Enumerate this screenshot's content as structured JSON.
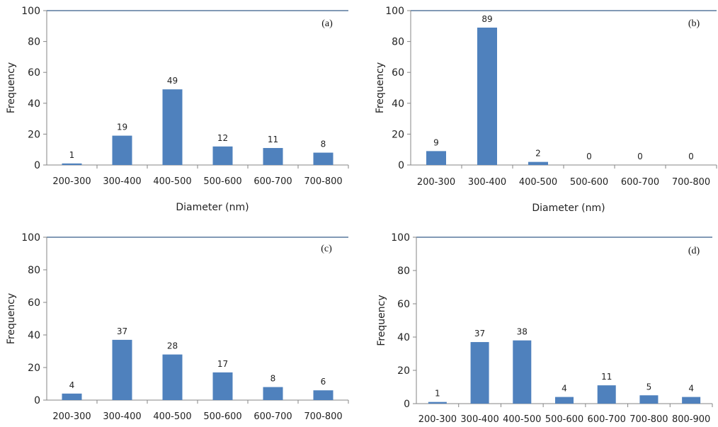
{
  "colors": {
    "bar": "#4f81bd",
    "axis": "#868686",
    "frame": "#385d8a"
  },
  "chart_data": [
    {
      "type": "bar",
      "panel_label": "(a)",
      "categories": [
        "200-300",
        "300-400",
        "400-500",
        "500-600",
        "600-700",
        "700-800"
      ],
      "values": [
        1,
        19,
        49,
        12,
        11,
        8
      ],
      "value_labels": [
        "1",
        "19",
        "49",
        "12",
        "11",
        "8"
      ],
      "xlabel": "Diameter (nm)",
      "ylabel": "Frequency",
      "ylim": [
        0,
        100
      ],
      "yticks": [
        "0",
        "20",
        "40",
        "60",
        "80",
        "100"
      ]
    },
    {
      "type": "bar",
      "panel_label": "(b)",
      "categories": [
        "200-300",
        "300-400",
        "400-500",
        "500-600",
        "600-700",
        "700-800"
      ],
      "values": [
        9,
        89,
        2,
        0,
        0,
        0
      ],
      "value_labels": [
        "9",
        "89",
        "2",
        "0",
        "0",
        "0"
      ],
      "xlabel": "Diameter (nm)",
      "ylabel": "Frequency",
      "ylim": [
        0,
        100
      ],
      "yticks": [
        "0",
        "20",
        "40",
        "60",
        "80",
        "100"
      ]
    },
    {
      "type": "bar",
      "panel_label": "(c)",
      "categories": [
        "200-300",
        "300-400",
        "400-500",
        "500-600",
        "600-700",
        "700-800"
      ],
      "values": [
        4,
        37,
        28,
        17,
        8,
        6
      ],
      "value_labels": [
        "4",
        "37",
        "28",
        "17",
        "8",
        "6"
      ],
      "xlabel": "",
      "ylabel": "Frequency",
      "ylim": [
        0,
        100
      ],
      "yticks": [
        "0",
        "20",
        "40",
        "60",
        "80",
        "100"
      ]
    },
    {
      "type": "bar",
      "panel_label": "(d)",
      "categories": [
        "200-300",
        "300-400",
        "400-500",
        "500-600",
        "600-700",
        "700-800",
        "800-900"
      ],
      "values": [
        1,
        37,
        38,
        4,
        11,
        5,
        4
      ],
      "value_labels": [
        "1",
        "37",
        "38",
        "4",
        "11",
        "5",
        "4"
      ],
      "xlabel": "",
      "ylabel": "Frequency",
      "ylim": [
        0,
        100
      ],
      "yticks": [
        "0",
        "20",
        "40",
        "60",
        "80",
        "100"
      ]
    }
  ]
}
